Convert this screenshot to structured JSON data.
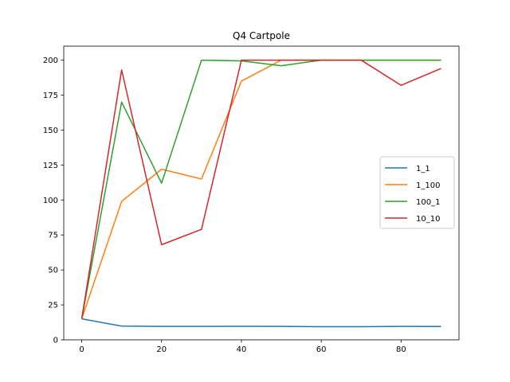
{
  "chart_data": {
    "type": "line",
    "title": "Q4 Cartpole",
    "xlabel": "",
    "ylabel": "",
    "x": [
      0,
      10,
      20,
      30,
      40,
      50,
      60,
      70,
      80,
      90
    ],
    "xlim": [
      -4.5,
      94.5
    ],
    "ylim": [
      0,
      210
    ],
    "xticks": [
      0,
      20,
      40,
      60,
      80
    ],
    "yticks": [
      0,
      25,
      50,
      75,
      100,
      125,
      150,
      175,
      200
    ],
    "grid": false,
    "legend_position": "center-right",
    "series": [
      {
        "name": "1_1",
        "color": "#1f77b4",
        "values": [
          15,
          9.8,
          9.6,
          9.6,
          9.7,
          9.6,
          9.4,
          9.4,
          9.6,
          9.5
        ]
      },
      {
        "name": "1_100",
        "color": "#ff7f0e",
        "values": [
          15,
          99,
          122,
          115,
          185,
          200,
          200,
          200,
          200,
          200
        ]
      },
      {
        "name": "100_1",
        "color": "#2ca02c",
        "values": [
          15,
          170,
          112,
          200,
          199.5,
          196,
          200,
          200,
          200,
          200
        ]
      },
      {
        "name": "10_10",
        "color": "#d62728",
        "values": [
          15,
          193,
          68,
          79,
          200,
          200,
          200,
          200,
          182,
          194
        ]
      }
    ]
  }
}
